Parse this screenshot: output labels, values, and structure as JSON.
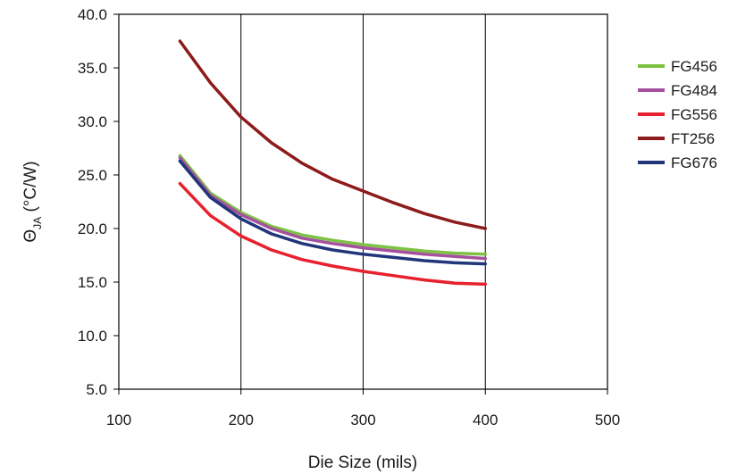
{
  "chart_data": {
    "type": "line",
    "xlabel": "Die Size (mils)",
    "ylabel_symbol": "Θ",
    "ylabel_subscript": "JA",
    "ylabel_unit": " (°C/W)",
    "xlim": [
      100,
      500
    ],
    "ylim": [
      5.0,
      40.0
    ],
    "x_ticks": [
      "100",
      "200",
      "300",
      "400",
      "500"
    ],
    "y_ticks": [
      "5.0",
      "10.0",
      "15.0",
      "20.0",
      "25.0",
      "30.0",
      "35.0",
      "40.0"
    ],
    "grid": "vertical-only",
    "legend_position": "right",
    "x": [
      150,
      175,
      200,
      225,
      250,
      275,
      300,
      325,
      350,
      375,
      400
    ],
    "series": [
      {
        "name": "FG456",
        "color": "#7dc242",
        "values": [
          26.8,
          23.3,
          21.5,
          20.2,
          19.4,
          18.9,
          18.5,
          18.2,
          17.9,
          17.7,
          17.6
        ]
      },
      {
        "name": "FG484",
        "color": "#a5509f",
        "values": [
          26.6,
          23.1,
          21.3,
          20.0,
          19.1,
          18.6,
          18.2,
          17.9,
          17.6,
          17.4,
          17.2
        ]
      },
      {
        "name": "FG556",
        "color": "#e8212e",
        "values": [
          24.2,
          21.2,
          19.3,
          18.0,
          17.1,
          16.5,
          16.0,
          15.6,
          15.2,
          14.9,
          14.8
        ]
      },
      {
        "name": "FT256",
        "color": "#8e1b1b",
        "values": [
          37.5,
          33.6,
          30.4,
          28.0,
          26.1,
          24.6,
          23.5,
          22.4,
          21.4,
          20.6,
          20.0
        ]
      },
      {
        "name": "FG676",
        "color": "#21357a",
        "values": [
          26.3,
          22.9,
          20.9,
          19.5,
          18.6,
          18.0,
          17.6,
          17.3,
          17.0,
          16.8,
          16.7
        ]
      }
    ]
  }
}
